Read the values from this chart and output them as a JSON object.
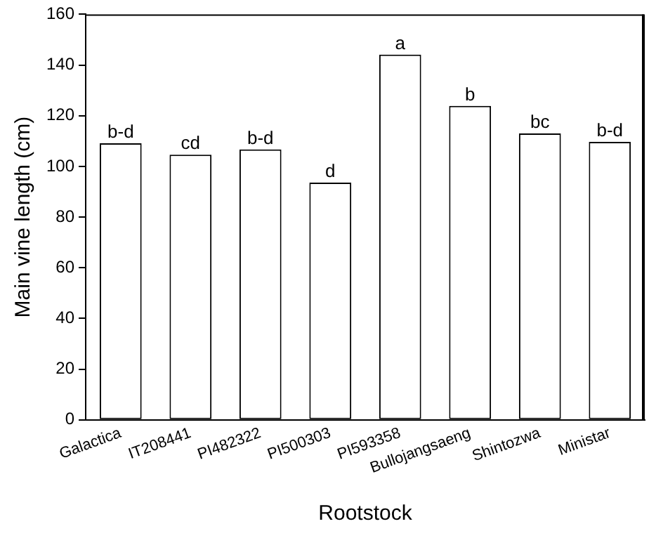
{
  "chart_data": {
    "type": "bar",
    "xlabel": "Rootstock",
    "ylabel": "Main vine length (cm)",
    "categories": [
      "Galactica",
      "IT208441",
      "PI482322",
      "PI500303",
      "PI593358",
      "Bullojangsaeng",
      "Shintozwa",
      "Ministar"
    ],
    "values": [
      109.1,
      104.6,
      106.7,
      93.6,
      144.1,
      123.9,
      113.0,
      109.7
    ],
    "color": "#ffffff",
    "ylim": [
      0,
      160
    ],
    "yticks": [
      0,
      20,
      40,
      60,
      80,
      100,
      120,
      140,
      160
    ],
    "grid": false,
    "legend": false,
    "annotations": [
      {
        "text": "b-d",
        "x": "Galactica",
        "y": 109.1
      },
      {
        "text": "cd",
        "x": "IT208441",
        "y": 104.6
      },
      {
        "text": "b-d",
        "x": "PI482322",
        "y": 106.7
      },
      {
        "text": "d",
        "x": "PI500303",
        "y": 93.6
      },
      {
        "text": "a",
        "x": "PI593358",
        "y": 144.1
      },
      {
        "text": "b",
        "x": "Bullojangsaeng",
        "y": 123.9
      },
      {
        "text": "bc",
        "x": "Shintozwa",
        "y": 113.0
      },
      {
        "text": "b-d",
        "x": "Ministar",
        "y": 109.7
      }
    ]
  }
}
